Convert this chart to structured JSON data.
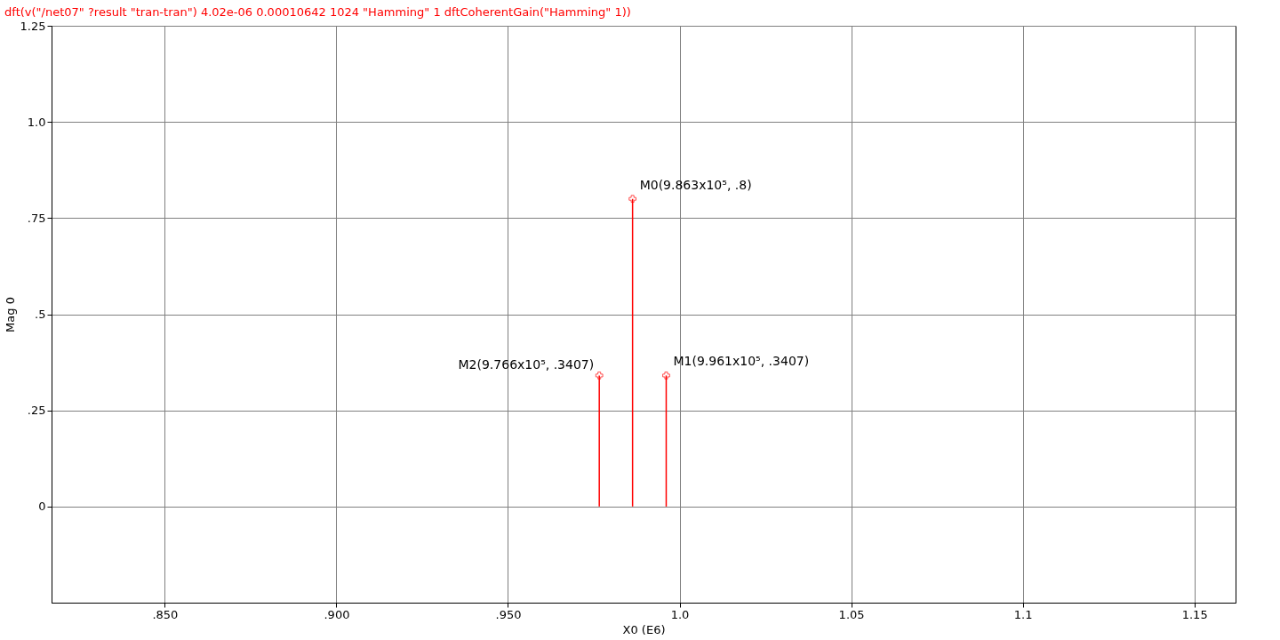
{
  "chart_data": {
    "type": "lollipop",
    "title": "dft(v(\"/net07\" ?result \"tran-tran\") 4.02e-06 0.00010642 1024 \"Hamming\" 1 dftCoherentGain(\"Hamming\" 1))",
    "xlabel": "X0 (E6)",
    "ylabel": "Mag 0",
    "x": [
      0.9766,
      0.9863,
      0.9961
    ],
    "series": [
      {
        "color": "#ff0000",
        "values": [
          0.3407,
          0.8,
          0.3407
        ]
      }
    ],
    "marker": "cross",
    "xlim": [
      0.817,
      1.162
    ],
    "xticks": [
      {
        "value": 0.85,
        "label": ".850"
      },
      {
        "value": 0.9,
        "label": ".900"
      },
      {
        "value": 0.95,
        "label": ".950"
      },
      {
        "value": 1.0,
        "label": "1.0"
      },
      {
        "value": 1.05,
        "label": "1.05"
      },
      {
        "value": 1.1,
        "label": "1.1"
      },
      {
        "value": 1.15,
        "label": "1.15"
      }
    ],
    "ylim": [
      -0.25,
      1.25
    ],
    "yticks": [
      {
        "value": 0,
        "label": "0"
      },
      {
        "value": 0.25,
        "label": ".25"
      },
      {
        "value": 0.5,
        "label": ".5"
      },
      {
        "value": 0.75,
        "label": ".75"
      },
      {
        "value": 1.0,
        "label": "1.0"
      },
      {
        "value": 1.25,
        "label": "1.25"
      }
    ],
    "grid": true,
    "annotations": [
      {
        "text": "M2(9.766x10⁵, .3407)",
        "x": 0.9766,
        "y": 0.3407
      },
      {
        "text": "M0(9.863x10⁵, .8)",
        "x": 0.9863,
        "y": 0.8
      },
      {
        "text": "M1(9.961x10⁵, .3407)",
        "x": 0.9961,
        "y": 0.3407
      }
    ]
  }
}
